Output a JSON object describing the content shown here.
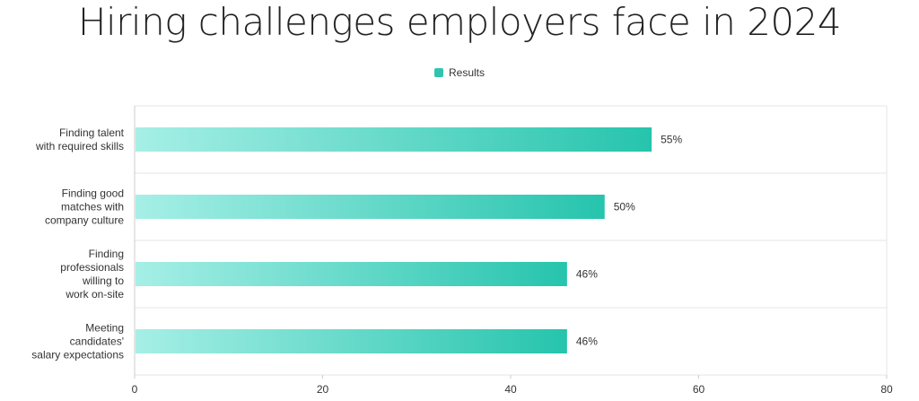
{
  "colors": {
    "bar_start": "#a6efe6",
    "bar_end": "#26c4ad",
    "legend": "#2ec4b0",
    "grid": "#e6e6e6",
    "axis": "#cccccc"
  },
  "chart_data": {
    "type": "bar",
    "orientation": "horizontal",
    "title": "Hiring challenges employers face in 2024",
    "xlabel": "",
    "ylabel": "",
    "xlim": [
      0,
      80
    ],
    "x_ticks": [
      "0",
      "20",
      "40",
      "60",
      "80"
    ],
    "legend": {
      "placement": "top-center",
      "entries": [
        "Results"
      ]
    },
    "grid": true,
    "categories": [
      [
        "Finding talent",
        "with required skills"
      ],
      [
        "Finding good",
        "matches with",
        "company culture"
      ],
      [
        "Finding",
        "professionals",
        "willing to",
        "work on-site"
      ],
      [
        "Meeting",
        "candidates'",
        "salary expectations"
      ]
    ],
    "series": [
      {
        "name": "Results",
        "values": [
          55,
          50,
          46,
          46
        ]
      }
    ],
    "value_labels": [
      "55%",
      "50%",
      "46%",
      "46%"
    ]
  }
}
